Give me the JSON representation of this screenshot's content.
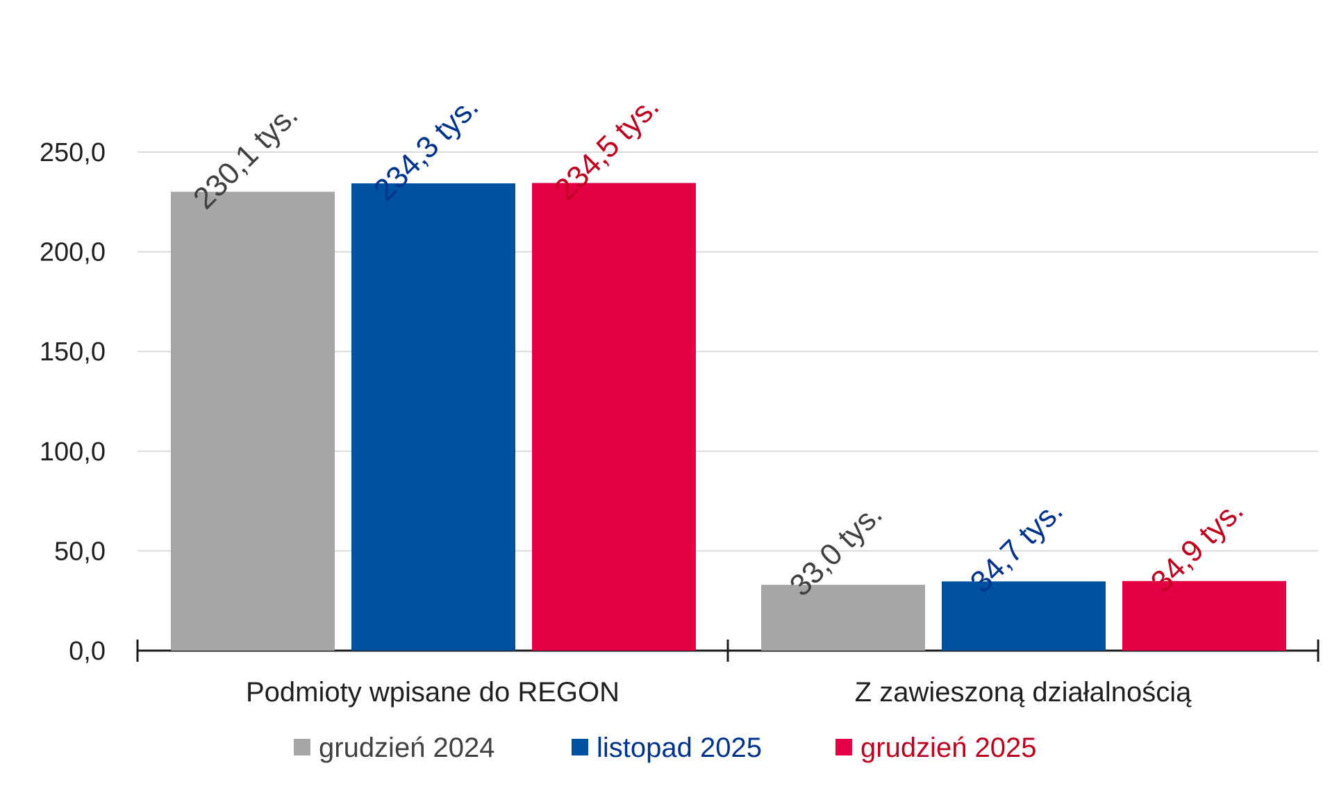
{
  "chart_data": {
    "type": "bar",
    "categories": [
      "Podmioty wpisane do REGON",
      "Z zawieszoną działalnością"
    ],
    "series": [
      {
        "name": "grudzień 2024",
        "values": [
          230.1,
          33.0
        ],
        "labels": [
          "230,1 tys.",
          "33,0 tys."
        ],
        "color": "#a6a6a6",
        "label_color": "#404040"
      },
      {
        "name": "listopad 2025",
        "values": [
          234.3,
          34.7
        ],
        "labels": [
          "234,3 tys.",
          "34,7 tys."
        ],
        "color": "#0051a0",
        "label_color": "#00338d"
      },
      {
        "name": "grudzień 2025",
        "values": [
          234.5,
          34.9
        ],
        "labels": [
          "234,5 tys.",
          "34,9 tys."
        ],
        "color": "#e30044",
        "label_color": "#c0001f"
      }
    ],
    "ylim": [
      0,
      250
    ],
    "yticks": [
      0,
      50,
      100,
      150,
      200,
      250
    ],
    "ytick_labels": [
      "0,0",
      "50,0",
      "100,0",
      "150,0",
      "200,0",
      "250,0"
    ],
    "grid": true,
    "legend": "bottom-center",
    "title": "",
    "xlabel": "",
    "ylabel": ""
  }
}
